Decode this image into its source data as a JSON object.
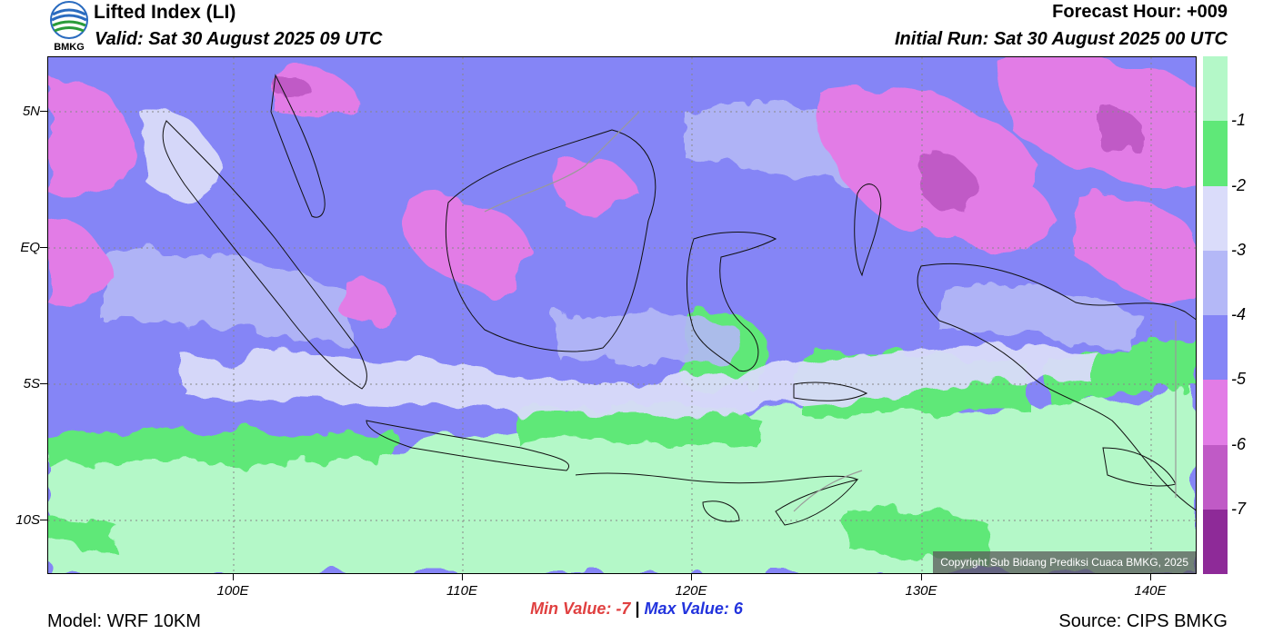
{
  "header": {
    "title": "Lifted Index (LI)",
    "valid": "Valid: Sat 30 August 2025 09 UTC",
    "forecast_hour": "Forecast Hour: +009",
    "initial_run": "Initial Run: Sat 30 August 2025 00 UTC",
    "logo_text": "BMKG"
  },
  "map": {
    "lat_labels": [
      "5N",
      "EQ",
      "5S",
      "10S"
    ],
    "lat_values": [
      5,
      0,
      -5,
      -10
    ],
    "lon_labels": [
      "100E",
      "110E",
      "120E",
      "130E",
      "140E"
    ],
    "lon_values": [
      100,
      110,
      120,
      130,
      140
    ],
    "extent": {
      "lon_min": 92,
      "lon_max": 142,
      "lat_min": -12,
      "lat_max": 7
    },
    "copyright": "Copyright Sub Bidang Prediksi Cuaca BMKG, 2025"
  },
  "colorbar": {
    "labels": [
      "-1",
      "-2",
      "-3",
      "-4",
      "-5",
      "-6",
      "-7"
    ],
    "colors": [
      "#b4f8c8",
      "#5fe878",
      "#dadcfa",
      "#b4b8f7",
      "#8585f6",
      "#e27ce6",
      "#c05ac6",
      "#8e2a98"
    ]
  },
  "stats": {
    "min_label": "Min Value:",
    "min_value": "-7",
    "separator": "|",
    "max_label": "Max Value:",
    "max_value": "6"
  },
  "footer": {
    "model": "Model: WRF 10KM",
    "source": "Source: CIPS BMKG"
  }
}
